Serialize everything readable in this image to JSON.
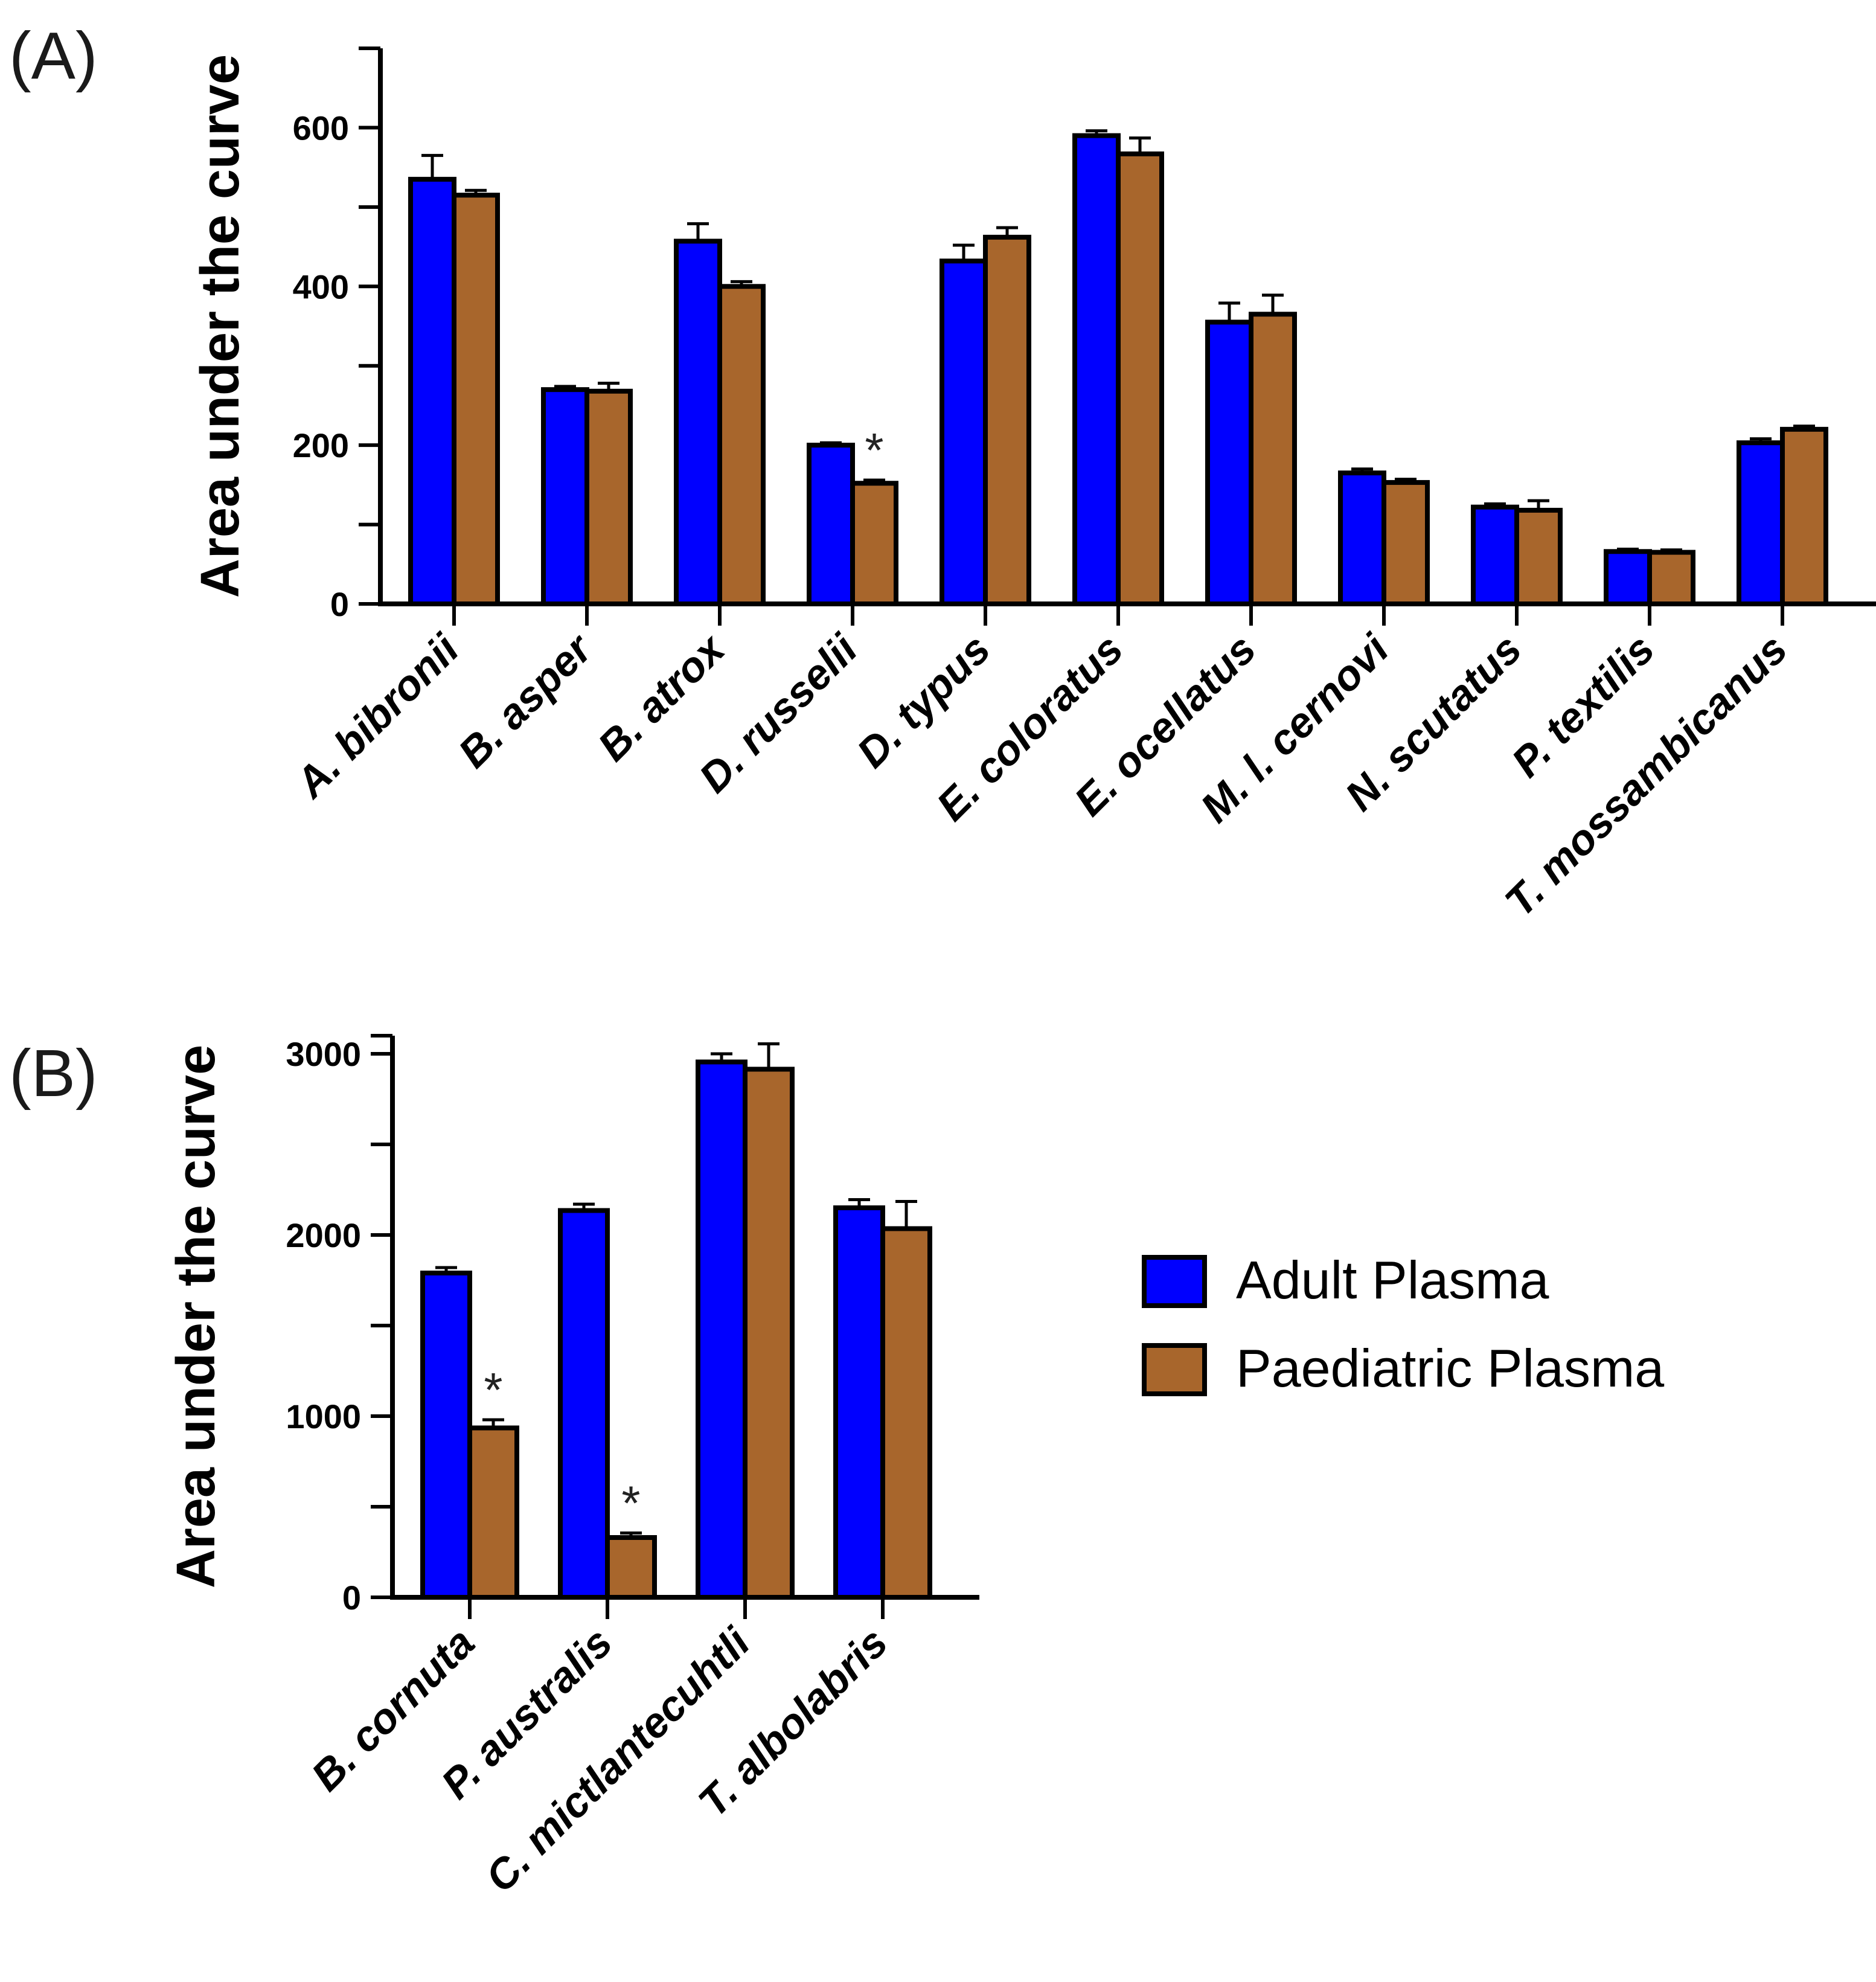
{
  "chart_data": [
    {
      "type": "bar",
      "panel": "(A)",
      "ylabel": "Area under the curve",
      "ylim": [
        0,
        700
      ],
      "yticks": [
        0,
        200,
        400,
        600
      ],
      "categories": [
        "A. bibronii",
        "B. asper",
        "B. atrox",
        "D. russelii",
        "D. typus",
        "E. coloratus",
        "E. ocellatus",
        "M. l. cernovi",
        "N. scutatus",
        "P. textilis",
        "T. mossambicanus"
      ],
      "series": [
        {
          "name": "Adult Plasma",
          "color": "#0000ff",
          "values": [
            535,
            270,
            457,
            200,
            432,
            590,
            355,
            165,
            122,
            66,
            203
          ],
          "errors": [
            30,
            4,
            22,
            3,
            20,
            6,
            24,
            5,
            4,
            3,
            5
          ]
        },
        {
          "name": "Paediatric Plasma",
          "color": "#a8662c",
          "values": [
            515,
            268,
            400,
            152,
            462,
            567,
            365,
            153,
            118,
            65,
            220
          ],
          "errors": [
            6,
            10,
            6,
            4,
            12,
            20,
            24,
            4,
            12,
            3,
            4
          ]
        }
      ],
      "significance": [
        {
          "category": "D. russelii",
          "series": "Paediatric Plasma",
          "label": "*"
        }
      ]
    },
    {
      "type": "bar",
      "panel": "(B)",
      "ylabel": "Area under the curve",
      "ylim": [
        0,
        3100
      ],
      "yticks": [
        0,
        1000,
        2000,
        3000
      ],
      "categories": [
        "B. cornuta",
        "P. australis",
        "C. mictlantecuhtli",
        "T. albolabris"
      ],
      "series": [
        {
          "name": "Adult Plasma",
          "color": "#0000ff",
          "values": [
            1790,
            2135,
            2955,
            2150
          ],
          "errors": [
            30,
            35,
            45,
            45
          ]
        },
        {
          "name": "Paediatric Plasma",
          "color": "#a8662c",
          "values": [
            935,
            330,
            2915,
            2035
          ],
          "errors": [
            45,
            25,
            140,
            150
          ]
        }
      ],
      "significance": [
        {
          "category": "B. cornuta",
          "series": "Paediatric Plasma",
          "label": "*"
        },
        {
          "category": "P. australis",
          "series": "Paediatric Plasma",
          "label": "*"
        }
      ]
    }
  ],
  "legend": [
    {
      "label": "Adult Plasma",
      "color": "#0000ff"
    },
    {
      "label": "Paediatric Plasma",
      "color": "#a8662c"
    }
  ]
}
